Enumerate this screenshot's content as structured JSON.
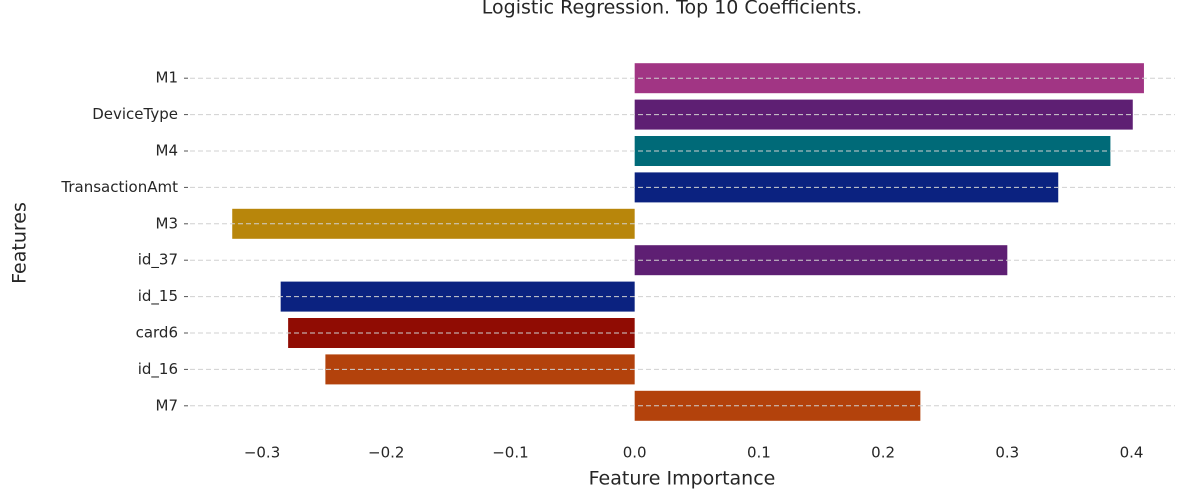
{
  "chart_data": {
    "type": "barh",
    "title": "Logistic Regression. Top 10 Coefficients.",
    "x_label": "Feature Importance",
    "y_label": "Features",
    "categories": [
      "M1",
      "DeviceType",
      "M4",
      "TransactionAmt",
      "M3",
      "id_37",
      "id_15",
      "card6",
      "id_16",
      "M7"
    ],
    "values": [
      0.41,
      0.401,
      0.383,
      0.341,
      -0.324,
      0.3,
      -0.285,
      -0.279,
      -0.249,
      0.23
    ],
    "colors": [
      "#a13584",
      "#5e1f73",
      "#006a78",
      "#0b2280",
      "#b8860b",
      "#5e1f73",
      "#0b2280",
      "#900c03",
      "#b3420c",
      "#b3420c"
    ],
    "xlim": [
      -0.358,
      0.435
    ],
    "xticks": [
      {
        "value": -0.3,
        "label": "−0.3"
      },
      {
        "value": -0.2,
        "label": "−0.2"
      },
      {
        "value": -0.1,
        "label": "−0.1"
      },
      {
        "value": 0,
        "label": "0.0"
      },
      0.1,
      0.2,
      0.3,
      0.4
    ],
    "grid": true
  }
}
